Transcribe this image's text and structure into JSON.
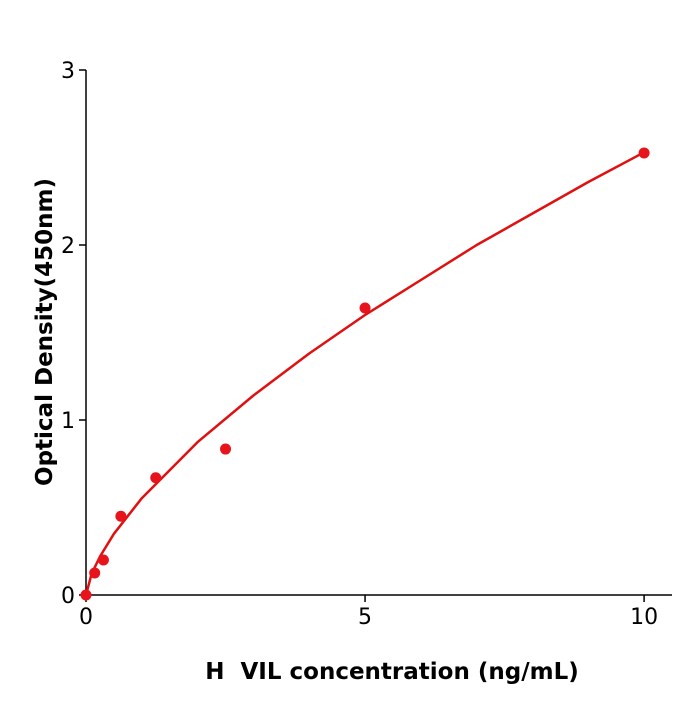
{
  "chart_data": {
    "type": "scatter",
    "xlabel": "H  VIL concentration (ng/mL)",
    "ylabel": "Optical Density(450nm)",
    "xlim": [
      0,
      10.5
    ],
    "ylim": [
      0,
      3
    ],
    "x_ticks": [
      "0",
      "5",
      "10"
    ],
    "y_ticks": [
      "0",
      "1",
      "2",
      "3"
    ],
    "grid": false,
    "colors": {
      "points": "#e8141c",
      "curve": "#e01010",
      "axis": "#000000"
    },
    "points": {
      "x": [
        0,
        0.156,
        0.3125,
        0.625,
        1.25,
        2.5,
        5,
        10
      ],
      "y": [
        0,
        0.126,
        0.2,
        0.45,
        0.67,
        0.834,
        1.64,
        2.526
      ]
    },
    "fit_curve": {
      "x": [
        0,
        0.1,
        0.25,
        0.5,
        1,
        2,
        3,
        4,
        5,
        6,
        7,
        8,
        9,
        10
      ],
      "y": [
        0,
        0.121,
        0.22,
        0.35,
        0.553,
        0.874,
        1.14,
        1.38,
        1.6,
        1.8,
        2.0,
        2.18,
        2.36,
        2.53
      ]
    }
  }
}
